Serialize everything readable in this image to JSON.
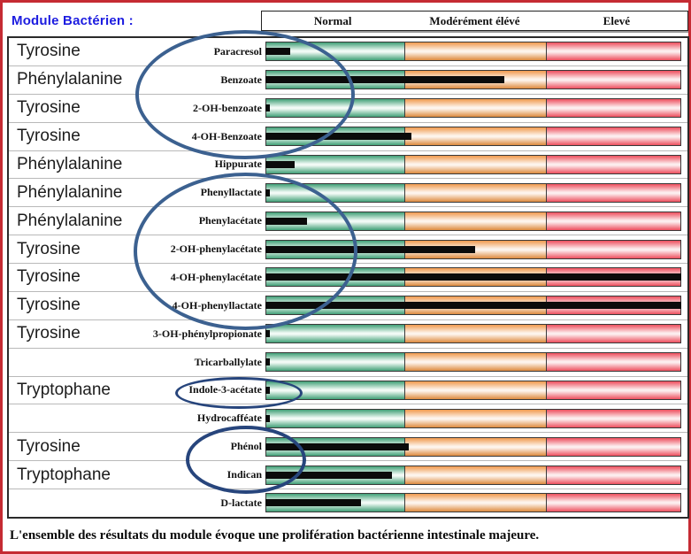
{
  "title": "Module Bactérien :",
  "header": {
    "columns": [
      "Normal",
      "Modérément élévé",
      "Elevé"
    ]
  },
  "conclusion": "L'ensemble des résultats du module évoque une prolifération bactérienne intestinale majeure.",
  "colors": {
    "page_border_red": "#c52b33",
    "title_blue": "#1c1ce0",
    "zone_normal_green": "#41a077",
    "zone_moderate_orange": "#f09a4e",
    "zone_elevated_red": "#ed4f5e",
    "value_bar_black": "#0b0b0b",
    "annotation_blue_large": "#3c6190",
    "annotation_blue_small": "#27457c"
  },
  "chart_data": {
    "type": "bar",
    "title": "Module Bactérien",
    "xlabel": "",
    "ylabel": "",
    "axis_note": "qualitative scale: value_pct = bar length as % of full track (Normal 0-33.6%, Modérément élévé 33.6-67.6%, Elevé 67.6-100%)",
    "zone_labels": [
      "Normal",
      "Modérément élévé",
      "Elevé"
    ],
    "zone_widths_pct": [
      33.6,
      34.0,
      32.4
    ],
    "rows": [
      {
        "category": "Tyrosine",
        "analyte": "Paracresol",
        "value_pct": 6,
        "level": "normal"
      },
      {
        "category": "Phénylalanine",
        "analyte": "Benzoate",
        "value_pct": 57.5,
        "level": "modérément élevé"
      },
      {
        "category": "Tyrosine",
        "analyte": "2-OH-benzoate",
        "value_pct": 1,
        "level": "normal"
      },
      {
        "category": "Tyrosine",
        "analyte": "4-OH-Benzoate",
        "value_pct": 35,
        "level": "modérément élevé"
      },
      {
        "category": "Phénylalanine",
        "analyte": "Hippurate",
        "value_pct": 7,
        "level": "normal"
      },
      {
        "category": "Phénylalanine",
        "analyte": "Phenyllactate",
        "value_pct": 1,
        "level": "normal"
      },
      {
        "category": "Phénylalanine",
        "analyte": "Phenylacétate",
        "value_pct": 10,
        "level": "normal"
      },
      {
        "category": "Tyrosine",
        "analyte": "2-OH-phenylacétate",
        "value_pct": 50.5,
        "level": "modérément élevé"
      },
      {
        "category": "Tyrosine",
        "analyte": "4-OH-phenylacétate",
        "value_pct": 100,
        "level": "élevé"
      },
      {
        "category": "Tyrosine",
        "analyte": "4-OH-phenyllactate",
        "value_pct": 100,
        "level": "élevé"
      },
      {
        "category": "Tyrosine",
        "analyte": "3-OH-phénylpropionate",
        "value_pct": 1,
        "level": "normal"
      },
      {
        "category": "",
        "analyte": "Tricarballylate",
        "value_pct": 1,
        "level": "normal"
      },
      {
        "category": "Tryptophane",
        "analyte": "Indole-3-acétate",
        "value_pct": 1,
        "level": "normal"
      },
      {
        "category": "",
        "analyte": "Hydrocafféate",
        "value_pct": 1,
        "level": "normal"
      },
      {
        "category": "Tyrosine",
        "analyte": "Phénol",
        "value_pct": 34.5,
        "level": "limite normal/modéré"
      },
      {
        "category": "Tryptophane",
        "analyte": "Indican",
        "value_pct": 30.5,
        "level": "normal"
      },
      {
        "category": "",
        "analyte": "D-lactate",
        "value_pct": 23,
        "level": "normal"
      }
    ],
    "annotations": [
      {
        "shape": "ellipse",
        "circled_analytes": [
          "Paracresol",
          "Benzoate",
          "2-OH-benzoate",
          "4-OH-Benzoate"
        ]
      },
      {
        "shape": "ellipse",
        "circled_analytes": [
          "Phenyllactate",
          "Phenylacétate",
          "2-OH-phenylacétate",
          "4-OH-phenylacétate",
          "4-OH-phenyllactate"
        ]
      },
      {
        "shape": "ellipse",
        "circled_analytes": [
          "Indole-3-acétate"
        ]
      },
      {
        "shape": "ellipse",
        "circled_analytes": [
          "Phénol",
          "Indican"
        ]
      }
    ]
  }
}
